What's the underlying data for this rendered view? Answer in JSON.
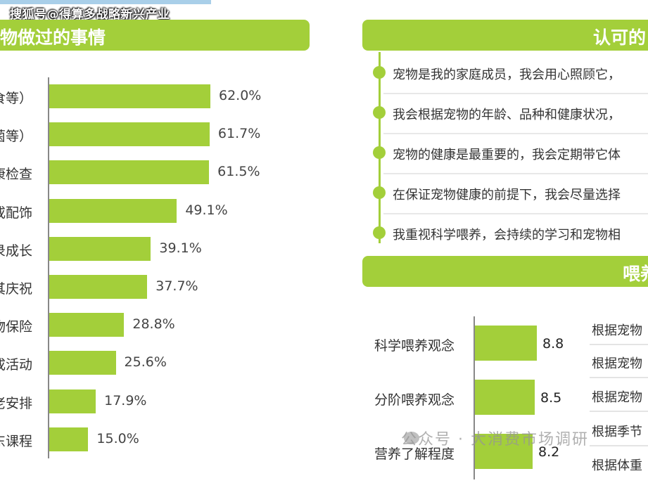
{
  "watermark_top": "搜狐号@得算多战略新兴产业",
  "left_banner": "物做过的事情",
  "right_banner_1": "认可的",
  "right_banner_2": "喂养",
  "chart_data": [
    {
      "type": "bar",
      "orientation": "horizontal",
      "title": "",
      "categories": [
        "食等）",
        "菌等）",
        "康检查",
        "或配饰",
        "录成长",
        "其庆祝",
        "物保险",
        "成活动",
        "老安排",
        "东课程"
      ],
      "values": [
        62.0,
        61.7,
        61.5,
        49.1,
        39.1,
        37.7,
        28.8,
        25.6,
        17.9,
        15.0
      ],
      "value_labels": [
        "62.0%",
        "61.7%",
        "61.5%",
        "49.1%",
        "39.1%",
        "37.7%",
        "28.8%",
        "25.6%",
        "17.9%",
        "15.0%"
      ],
      "unit": "%",
      "color": "#a3cf3a"
    },
    {
      "type": "bar",
      "orientation": "horizontal",
      "title": "",
      "categories": [
        "科学喂养观念",
        "分阶喂养观念",
        "营养了解程度"
      ],
      "values": [
        8.8,
        8.5,
        8.2
      ],
      "value_labels": [
        "8.8",
        "8.5",
        "8.2"
      ],
      "color": "#a3cf3a"
    }
  ],
  "timeline_items": [
    "宠物是我的家庭成员，我会用心照顾它，",
    "我会根据宠物的年龄、品种和健康状况，",
    "宠物的健康是最重要的，我会定期带它体",
    "在保证宠物健康的前提下，我会尽量选择",
    "我重视科学喂养，会持续的学习和宠物相"
  ],
  "right_column_items": [
    "根据宠物",
    "根据宠物",
    "根据宠物",
    "根据季节",
    "根据体重"
  ],
  "watermark_bottom": "公众号 · 大消费市场调研"
}
